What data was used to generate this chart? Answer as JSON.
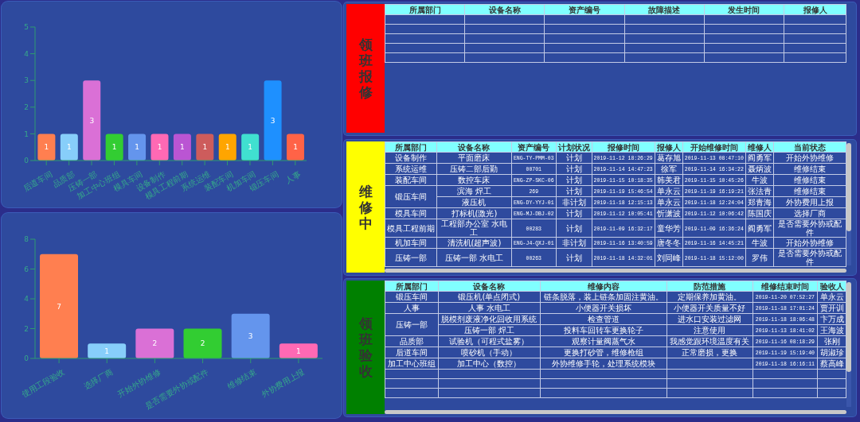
{
  "chart_data": [
    {
      "type": "bar",
      "categories": [
        "后道车间",
        "品质部",
        "压铸一部",
        "加工中心班组",
        "模具车间",
        "设备制作",
        "模具工程前期",
        "系统运维",
        "装配车间",
        "机加车间",
        "锻压车间",
        "人事"
      ],
      "values": [
        1,
        1,
        3,
        1,
        1,
        1,
        1,
        1,
        1,
        1,
        3,
        1
      ],
      "colors": [
        "#ff7f50",
        "#87cefa",
        "#da70d6",
        "#32cd32",
        "#6495ed",
        "#ff69b4",
        "#ba55d3",
        "#cd5c5c",
        "#ffa500",
        "#40e0d0",
        "#1e90ff",
        "#ff6347"
      ],
      "ylim": [
        0,
        5
      ],
      "yticks": [
        0,
        1,
        2,
        3,
        4,
        5
      ],
      "data_labels": true
    },
    {
      "type": "bar",
      "categories": [
        "使用工段验收",
        "选择厂商",
        "开始外协维修",
        "是否需要外协或配件",
        "维修结束",
        "外协费用上报"
      ],
      "values": [
        7,
        1,
        2,
        2,
        3,
        1
      ],
      "colors": [
        "#ff7f50",
        "#87cefa",
        "#da70d6",
        "#32cd32",
        "#6495ed",
        "#ff69b4"
      ],
      "ylim": [
        0,
        8
      ],
      "yticks": [
        0,
        2,
        4,
        6,
        8
      ],
      "data_labels": true
    },
    {
      "type": "other",
      "title": "领班报修",
      "color": "#ff0000",
      "categories": [
        "所属部门",
        "设备名称",
        "资产编号",
        "故障描述",
        "发生时间",
        "报修人"
      ],
      "cell_labels": [
        [
          null,
          null,
          null,
          null,
          null,
          null
        ],
        [
          null,
          null,
          null,
          null,
          null,
          null
        ],
        [
          null,
          null,
          null,
          null,
          null,
          null
        ],
        [
          null,
          null,
          null,
          null,
          null,
          null
        ],
        [
          null,
          null,
          null,
          null,
          null,
          null
        ]
      ]
    },
    {
      "type": "other",
      "title": "维修中",
      "color": "#ffff00",
      "categories": [
        "所属部门",
        "设备名称",
        "资产编号",
        "计划状况",
        "报修时间",
        "报修人",
        "开始维修时间",
        "维修人",
        "当前状态"
      ],
      "cell_labels": [
        [
          "设备制作",
          "平面磨床",
          "ENG-TY-PMM-03",
          "计划",
          "2019-11-12 18:26:29",
          "葛存旭",
          "2019-11-13 08:47:10",
          "阎勇军",
          "开始外协维修"
        ],
        [
          "系统运维",
          "压铸二部后勤",
          "00701",
          "计划",
          "2019-11-14 14:47:23",
          "徐军",
          "2019-11-14 16:34:22",
          "聂炳波",
          "维修结束"
        ],
        [
          "装配车间",
          "数控车床",
          "ENG-ZP-SKC-06",
          "计划",
          "2019-11-15 10:18:35",
          "韩美君",
          "2019-11-15 10:45:26",
          "牛波",
          "维修结束"
        ],
        [
          "锻压车间",
          "滨海 焊工",
          "269",
          "计划",
          "2019-11-19 15:46:54",
          "单永云",
          "2019-11-19 16:19:21",
          "张法青",
          "维修结束"
        ],
        [
          null,
          "液压机",
          "ENG-DY-YYJ-01",
          "非计划",
          "2019-11-18 12:15:13",
          "单永云",
          "2019-11-18 12:24:04",
          "郑青海",
          "外协费用上报"
        ],
        [
          "模具车间",
          "打标机(激光)",
          "ENG-MJ-DBJ-02",
          "计划",
          "2019-11-12 10:05:41",
          "忻潇波",
          "2019-11-12 10:06:42",
          "陈国庆",
          "选择厂商"
        ],
        [
          "模具工程前期",
          "工程部办公室 水电工",
          "00283",
          "计划",
          "2019-11-09 16:32:17",
          "童华芳",
          "2019-11-09 16:36:24",
          "阎勇军",
          "是否需要外协或配件"
        ],
        [
          "机加车间",
          "清洗机(超声波)",
          "ENG-J4-QXJ-01",
          "非计划",
          "2019-11-16 13:40:59",
          "唐冬冬",
          "2019-11-16 14:45:21",
          "牛波",
          "开始外协维修"
        ],
        [
          "压铸一部",
          "压铸一部 水电工",
          "00263",
          "计划",
          "2019-11-18 14:32:01",
          "刘同峰",
          "2019-11-18 15:12:00",
          "罗伟",
          "是否需要外协或配件"
        ]
      ]
    },
    {
      "type": "other",
      "title": "领班验收",
      "color": "#008000",
      "categories": [
        "所属部门",
        "设备名称",
        "维修内容",
        "防范措施",
        "维修结束时间",
        "验收人"
      ],
      "cell_labels": [
        [
          "锻压车间",
          "锻压机(单点闭式)",
          "链条脱落，装上链条加固注黄油。",
          "定期保养加黄油。",
          "2019-11-20 07:52:27",
          "单永云"
        ],
        [
          "人事",
          "人事 水电工",
          "小便器开关损坏",
          "小便器开关质量不好",
          "2019-11-18 17:01:24",
          "贾开训"
        ],
        [
          "压铸一部",
          "脱模剂废液净化回收用系统",
          "检查管道",
          "进水口安装过滤网",
          "2019-11-18 18:06:48",
          "卞万成"
        ],
        [
          null,
          "压铸一部 焊工",
          "投料车回转车更换轮子",
          "注意使用",
          "2019-11-13 18:41:02",
          "王海波"
        ],
        [
          "品质部",
          "试验机（可程式盐雾）",
          "观察计量阀蒸气水",
          "我感觉跟环境温度有关",
          "2019-11-16 08:18:29",
          "张刚"
        ],
        [
          "后道车间",
          "喷砂机（手动）",
          "更换打砂管，维修枪组",
          "正常磨损，更换",
          "2019-11-19 15:19:40",
          "胡淑珍"
        ],
        [
          "加工中心班组",
          "加工中心（数控）",
          "外协维修手轮，处理系统模块",
          null,
          "2019-11-18 16:16:11",
          "蔡高峰"
        ],
        [
          null,
          null,
          null,
          null,
          null,
          null
        ],
        [
          null,
          null,
          null,
          null,
          null,
          null
        ],
        [
          null,
          null,
          null,
          null,
          null,
          null
        ]
      ]
    }
  ]
}
